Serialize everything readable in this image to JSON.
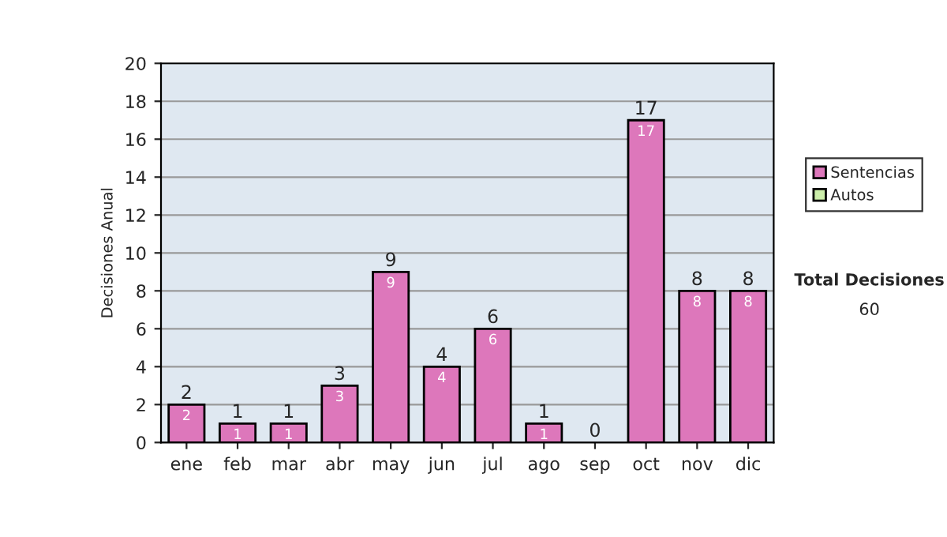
{
  "chart_data": {
    "type": "bar",
    "stacked": true,
    "ylabel": "Decisiones Anual",
    "categories": [
      "ene",
      "feb",
      "mar",
      "abr",
      "may",
      "jun",
      "jul",
      "ago",
      "sep",
      "oct",
      "nov",
      "dic"
    ],
    "series": [
      {
        "name": "Sentencias",
        "color": "#dd77bb",
        "values": [
          2,
          1,
          1,
          3,
          9,
          4,
          6,
          1,
          0,
          17,
          8,
          8
        ],
        "value_labels": [
          "2",
          "1",
          "1",
          "3",
          "9",
          "4",
          "6",
          "1",
          null,
          "17",
          "8",
          "8"
        ]
      },
      {
        "name": "Autos",
        "color": "#cceeaa",
        "values": [
          0,
          0,
          0,
          0,
          0,
          0,
          0,
          0,
          0,
          0,
          0,
          0
        ]
      }
    ],
    "totals": [
      "2",
      "1",
      "1",
      "3",
      "9",
      "4",
      "6",
      "1",
      "0",
      "17",
      "8",
      "8"
    ],
    "ylim": [
      0,
      20
    ],
    "yticks": [
      0,
      2,
      4,
      6,
      8,
      10,
      12,
      14,
      16,
      18,
      20
    ],
    "grid": "y",
    "legend": "right",
    "annotations": [
      "Total Decisiones",
      "60"
    ]
  }
}
